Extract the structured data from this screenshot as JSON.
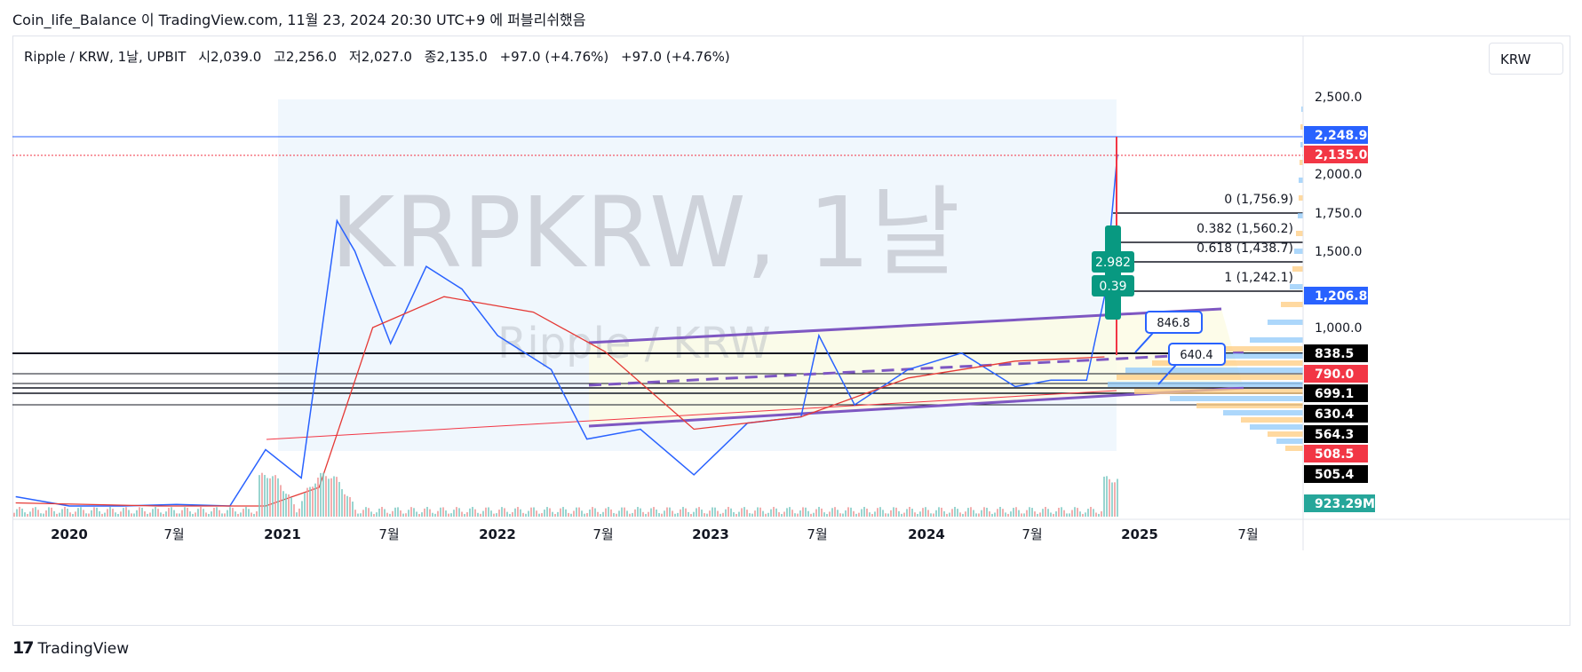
{
  "caption": {
    "author": "Coin_life_Balance",
    "text": "이 TradingView.com, 11월 23, 2024 20:30 UTC+9 에 퍼블리쉬했음"
  },
  "symbol": {
    "name": "Ripple / KRW, 1날, UPBIT",
    "open": "시2,039.0",
    "high": "고2,256.0",
    "low": "저2,027.0",
    "close": "종2,135.0",
    "change1": "+97.0 (+4.76%)",
    "change2": "+97.0 (+4.76%)"
  },
  "currency_button": "KRW",
  "watermark": {
    "big": "KRPKRW, 1날",
    "small": "Ripple / KRW"
  },
  "footer": {
    "brand": "TradingView",
    "mark": "17"
  },
  "chart_data": {
    "type": "line",
    "title": "Ripple / KRW, 1날, UPBIT",
    "y_axis": {
      "ticks": [
        "2,500.0",
        "2,000.0",
        "1,750.0",
        "1,500.0",
        "1,000.0"
      ],
      "range": [
        300,
        2700
      ]
    },
    "x_axis": {
      "ticks": [
        "2020",
        "7월",
        "2021",
        "7월",
        "2022",
        "7월",
        "2023",
        "7월",
        "2024",
        "7월",
        "2025",
        "7월"
      ]
    },
    "series": [
      {
        "name": "",
        "color": "#2962ff",
        "x": [
          "2019-10",
          "2020-01",
          "2020-04",
          "2020-07",
          "2020-10",
          "2020-12",
          "2021-02",
          "2021-04",
          "2021-05",
          "2021-07",
          "2021-09",
          "2021-11",
          "2022-01",
          "2022-04",
          "2022-06",
          "2022-09",
          "2022-12",
          "2023-03",
          "2023-06",
          "2023-07",
          "2023-09",
          "2023-12",
          "2024-03",
          "2024-06",
          "2024-08",
          "2024-10",
          "2024-11",
          "2024-11-23"
        ],
        "y": [
          360,
          290,
          270,
          310,
          290,
          520,
          480,
          1700,
          1500,
          900,
          1400,
          1250,
          950,
          800,
          550,
          580,
          500,
          600,
          620,
          950,
          660,
          800,
          840,
          730,
          760,
          760,
          1200,
          2135
        ]
      },
      {
        "name": "",
        "color": "#e53935",
        "x": [
          "2019-10",
          "2020-06",
          "2020-12",
          "2021-03",
          "2021-06",
          "2021-10",
          "2022-03",
          "2022-07",
          "2022-12",
          "2023-06",
          "2023-12",
          "2024-06",
          "2024-11"
        ],
        "y": [
          320,
          290,
          300,
          420,
          1000,
          1200,
          1100,
          850,
          580,
          620,
          770,
          820,
          830
        ]
      }
    ],
    "price_labels": [
      {
        "text": "2,248.9",
        "value": 2248.9,
        "color": "#2962ff"
      },
      {
        "text": "2,135.0",
        "value": 2135.0,
        "color": "#f23645"
      },
      {
        "text": "1,206.8",
        "value": 1206.8,
        "color": "#2962ff"
      },
      {
        "text": "838.5",
        "value": 838.5,
        "color": "#000000"
      },
      {
        "text": "790.0",
        "value": 790.0,
        "color": "#f23645"
      },
      {
        "text": "699.1",
        "value": 699.1,
        "color": "#000000"
      },
      {
        "text": "630.4",
        "value": 630.4,
        "color": "#000000"
      },
      {
        "text": "564.3",
        "value": 564.3,
        "color": "#000000"
      },
      {
        "text": "508.5",
        "value": 508.5,
        "color": "#f23645"
      },
      {
        "text": "505.4",
        "value": 505.4,
        "color": "#000000"
      }
    ],
    "volume_label": {
      "text": "923.29M",
      "color": "#26a69a"
    },
    "fib_levels": [
      {
        "text": "0 (1,756.9)",
        "value": 1756.9
      },
      {
        "text": "0.382 (1,560.2)",
        "value": 1560.2
      },
      {
        "text": "0.618 (1,438.7)",
        "value": 1438.7
      },
      {
        "text": "1 (1,242.1)",
        "value": 1242.1
      }
    ],
    "callouts": [
      {
        "text": "846.8"
      },
      {
        "text": "640.4"
      }
    ],
    "badges": [
      {
        "text": "2.982"
      },
      {
        "text": "0.39"
      }
    ]
  }
}
